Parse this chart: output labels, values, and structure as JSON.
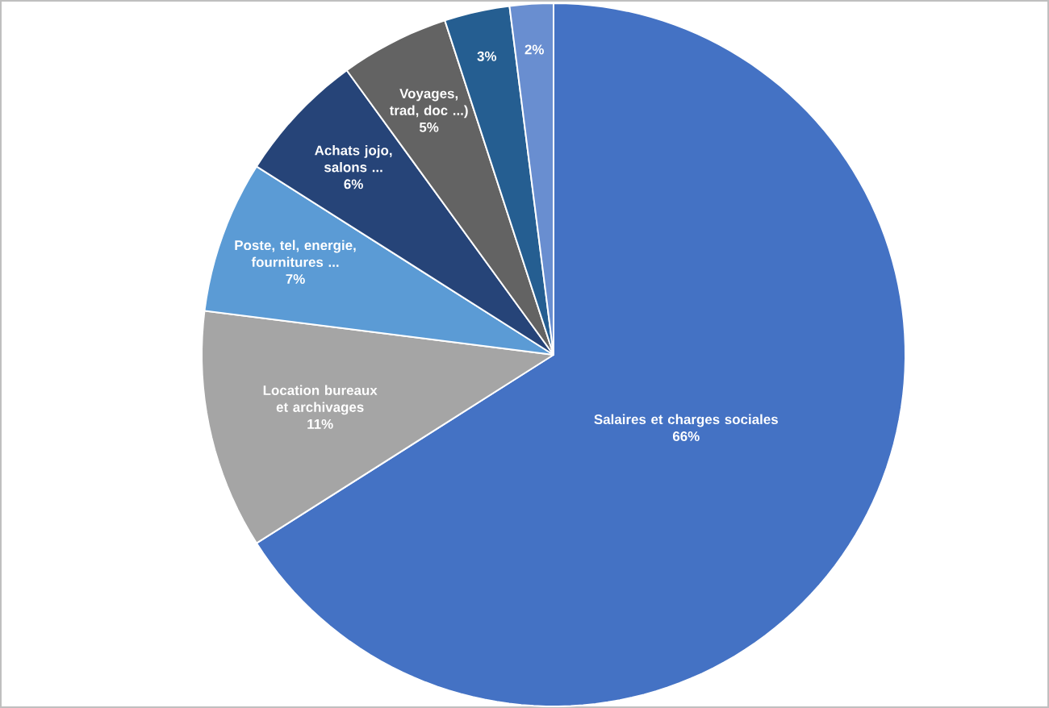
{
  "chart_data": {
    "type": "pie",
    "categories": [
      "Salaires et charges sociales",
      "Location bureaux et archivages",
      "Poste, tel, energie, fournitures ...",
      "Achats jojo, salons ...",
      "Voyages, trad, doc ...)",
      null,
      null
    ],
    "values": [
      66,
      11,
      7,
      6,
      5,
      3,
      2
    ],
    "value_labels": [
      "66%",
      "11%",
      "7%",
      "6%",
      "5%",
      "3%",
      "2%"
    ],
    "colors": [
      "#4472c4",
      "#a5a5a5",
      "#5b9bd5",
      "#264478",
      "#636363",
      "#255e91",
      "#698ed0"
    ]
  }
}
